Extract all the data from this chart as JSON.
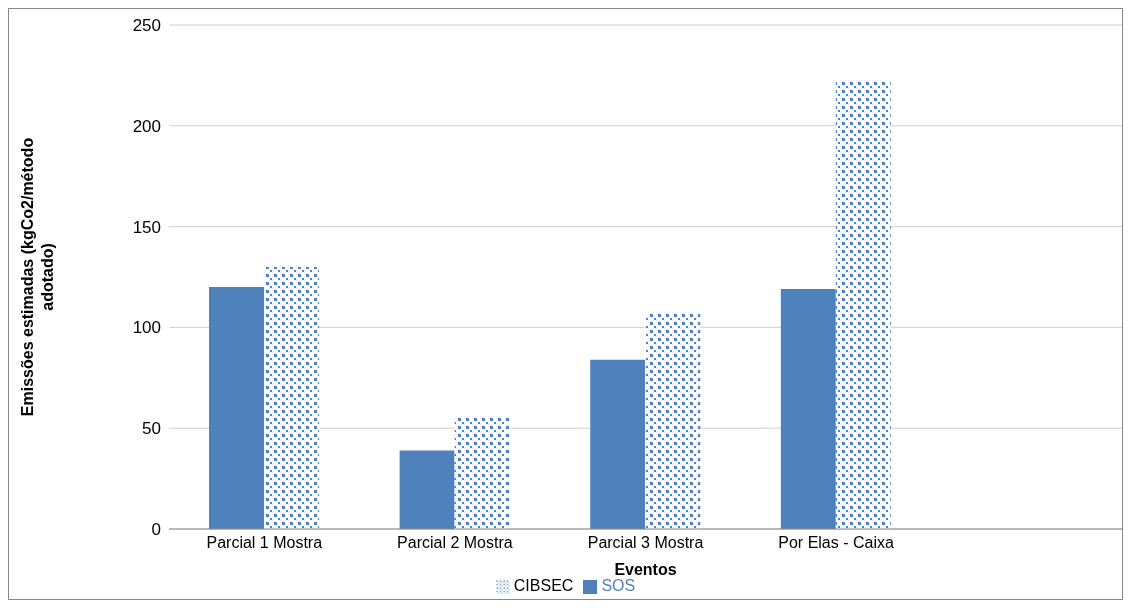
{
  "chart_data": {
    "type": "bar",
    "xlabel": "Eventos",
    "ylabel": "Emissões estimadas (kgCo2/método adotado)",
    "categories": [
      "Parcial 1 Mostra",
      "Parcial 2 Mostra",
      "Parcial 3 Mostra",
      "Por Elas - Caixa",
      null
    ],
    "series": [
      {
        "name": "SOS",
        "color": "#4f81bd",
        "values": [
          120,
          39,
          84,
          119,
          null
        ]
      },
      {
        "name": "CIBSEC",
        "color": "#4f81bd",
        "values": [
          130,
          55,
          107,
          222,
          null
        ]
      }
    ],
    "ylim": [
      0,
      250
    ],
    "yticks": [
      0,
      50,
      100,
      150,
      200,
      250
    ],
    "grid": "y",
    "legend": "bottom"
  }
}
